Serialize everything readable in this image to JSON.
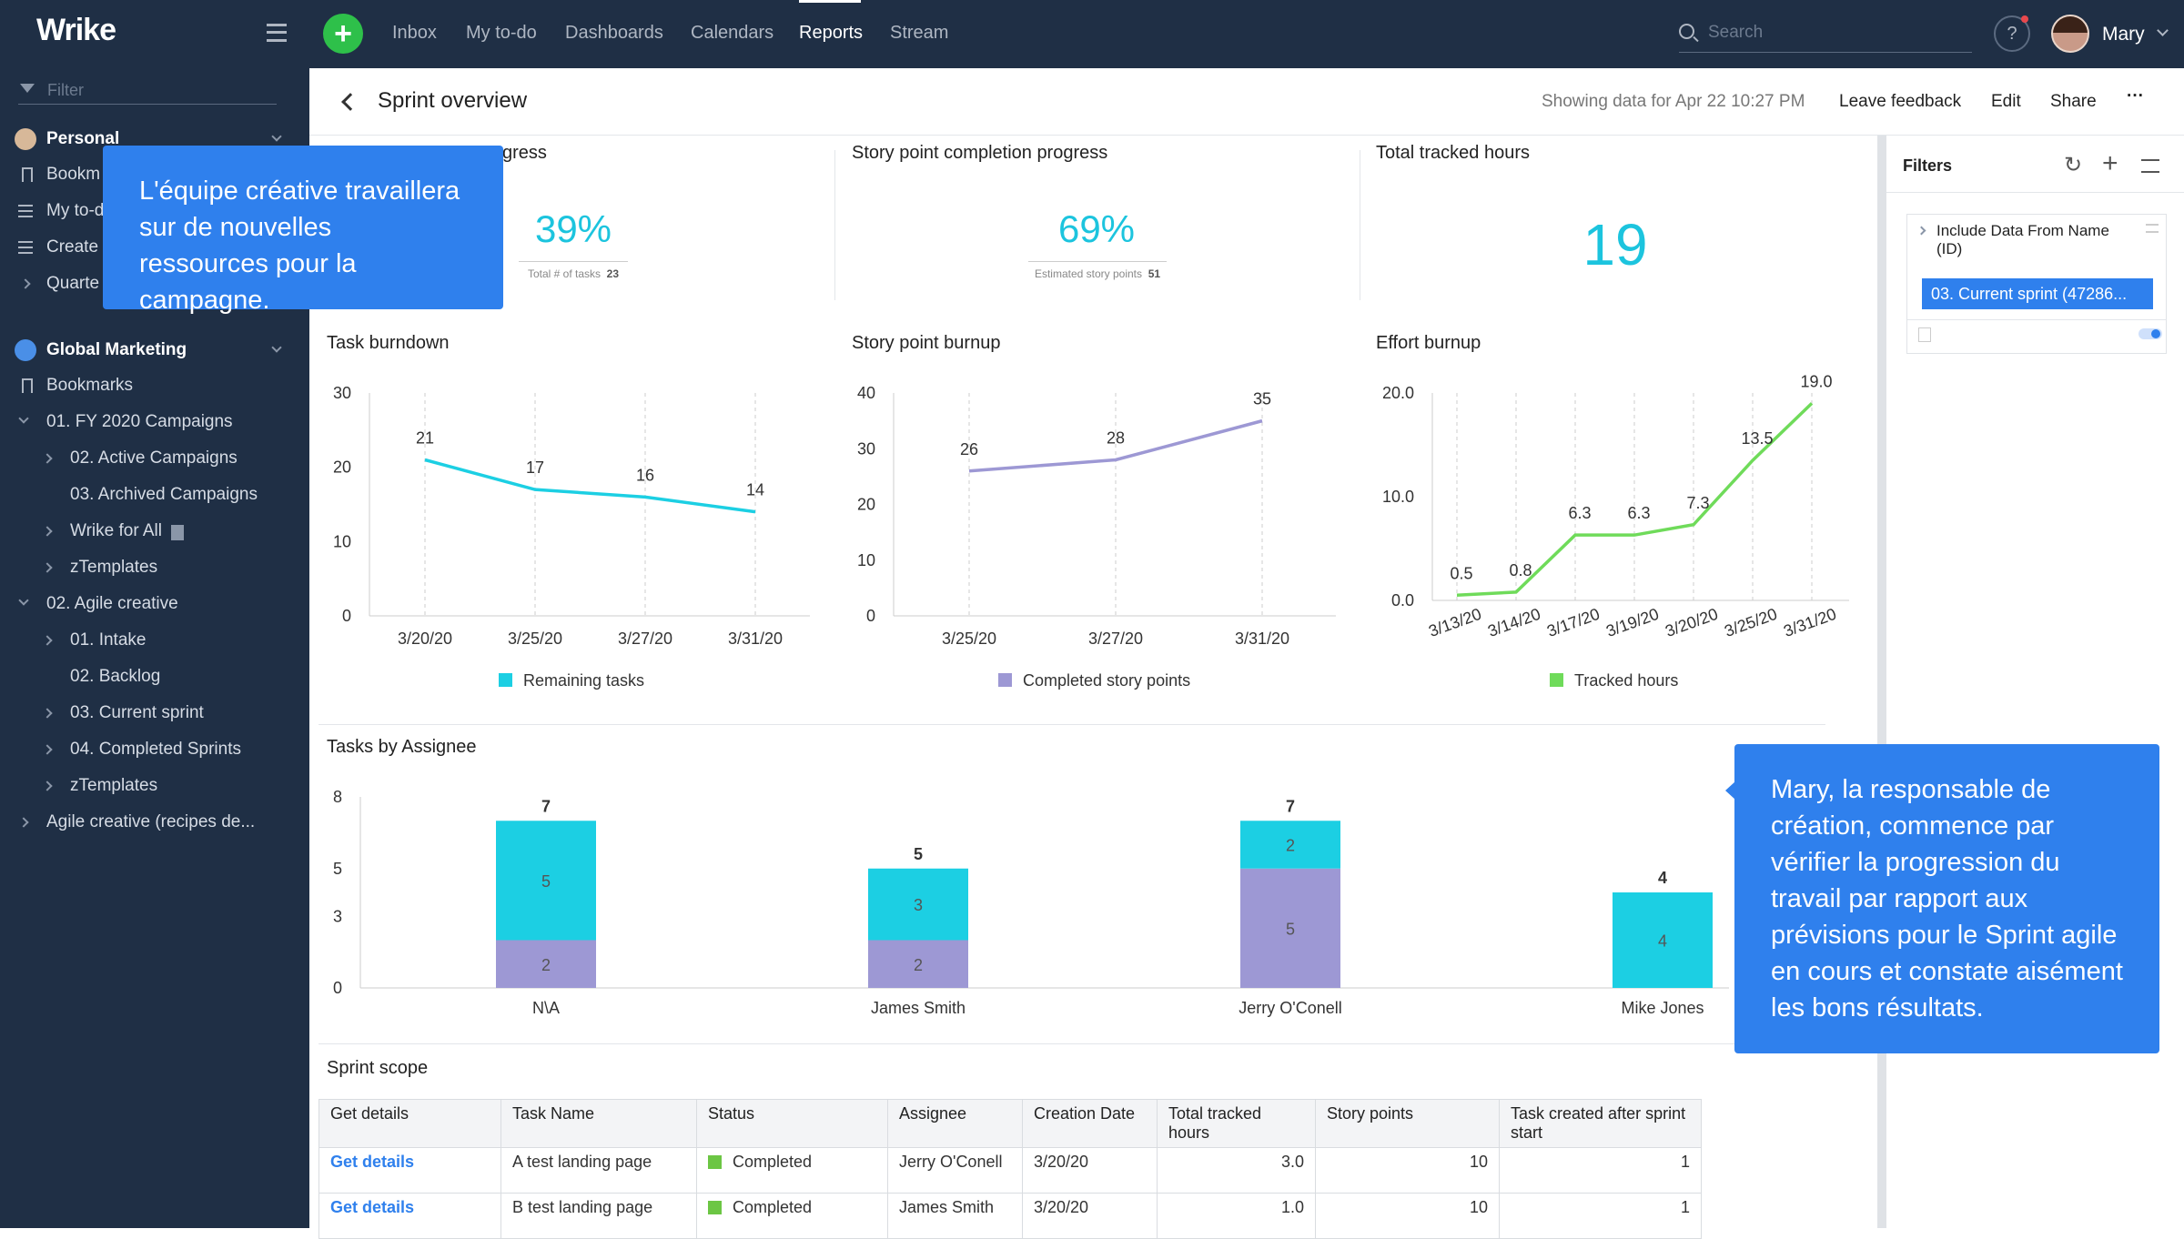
{
  "app": {
    "logo": "Wrike",
    "user_name": "Mary"
  },
  "nav": {
    "items": [
      "Inbox",
      "My to-do",
      "Dashboards",
      "Calendars",
      "Reports",
      "Stream"
    ],
    "active": "Reports",
    "search_placeholder": "Search",
    "help": "?"
  },
  "sidebar": {
    "filter_placeholder": "Filter",
    "items": [
      "Personal",
      "Bookm",
      "My to-d",
      "Create",
      "Quarte",
      "Global Marketing",
      "Bookmarks",
      "01. FY 2020 Campaigns",
      "02. Active Campaigns",
      "03. Archived Campaigns",
      "Wrike for All",
      "zTemplates",
      "02. Agile creative",
      "01. Intake",
      "02. Backlog",
      "03. Current sprint",
      "04. Completed Sprints",
      "zTemplates",
      "Agile creative (recipes de..."
    ]
  },
  "header": {
    "title": "Sprint overview",
    "showing": "Showing data for Apr 22 10:27 PM",
    "leave_feedback": "Leave feedback",
    "edit": "Edit",
    "share": "Share",
    "more": "···"
  },
  "kpi": [
    {
      "title": "gress",
      "value": "39%",
      "sub_label": "Total # of tasks",
      "sub_value": "23"
    },
    {
      "title": "Story point completion progress",
      "value": "69%",
      "sub_label": "Estimated story points",
      "sub_value": "51"
    },
    {
      "title": "Total tracked hours",
      "value": "19"
    }
  ],
  "colors": {
    "teal": "#1ccfe3",
    "purple": "#9d98d4",
    "green": "#6fdb5a",
    "accent": "#2f80ed"
  },
  "chart_data": [
    {
      "type": "line",
      "title": "Task burndown",
      "x": [
        "3/20/20",
        "3/25/20",
        "3/27/20",
        "3/31/20"
      ],
      "series": [
        {
          "name": "Remaining tasks",
          "values": [
            21,
            17,
            16,
            14
          ]
        }
      ],
      "ylim": [
        0,
        30
      ],
      "yticks": [
        0,
        10,
        20,
        30
      ],
      "grid": true,
      "legend": "bottom"
    },
    {
      "type": "line",
      "title": "Story point burnup",
      "x": [
        "3/25/20",
        "3/27/20",
        "3/31/20"
      ],
      "series": [
        {
          "name": "Completed story points",
          "values": [
            26,
            28,
            35
          ]
        }
      ],
      "ylim": [
        0,
        40
      ],
      "yticks": [
        0,
        10,
        20,
        30,
        40
      ],
      "grid": true,
      "legend": "bottom"
    },
    {
      "type": "line",
      "title": "Effort burnup",
      "x": [
        "3/13/20",
        "3/14/20",
        "3/17/20",
        "3/19/20",
        "3/20/20",
        "3/25/20",
        "3/31/20"
      ],
      "series": [
        {
          "name": "Tracked hours",
          "values": [
            0.5,
            0.8,
            6.3,
            6.3,
            7.3,
            13.5,
            19.0
          ]
        }
      ],
      "value_labels": [
        "0.5",
        "0.8",
        "6.3",
        "6.3",
        "7.3",
        "13.5",
        "19.0"
      ],
      "ylim": [
        0,
        20
      ],
      "yticks": [
        "0.0",
        "10.0",
        "20.0"
      ],
      "grid": true,
      "legend": "bottom"
    },
    {
      "type": "bar",
      "title": "Tasks by Assignee",
      "stacked": true,
      "categories": [
        "N\\A",
        "James Smith",
        "Jerry O'Conell",
        "Mike Jones"
      ],
      "series": [
        {
          "values": [
            2,
            2,
            5,
            0
          ]
        },
        {
          "values": [
            5,
            3,
            2,
            4
          ]
        }
      ],
      "totals": [
        7,
        5,
        7,
        4
      ],
      "ylim": [
        0,
        8
      ],
      "yticks": [
        0,
        3,
        5,
        8
      ]
    }
  ],
  "filters": {
    "title": "Filters",
    "field": "Include Data From Name (ID)",
    "value": "03. Current sprint (47286..."
  },
  "table": {
    "title": "Sprint scope",
    "headers": [
      "Get details",
      "Task Name",
      "Status",
      "Assignee",
      "Creation Date",
      "Total tracked hours",
      "Story points",
      "Task created after sprint start"
    ],
    "rows": [
      [
        "Get details",
        "A test landing page",
        "Completed",
        "Jerry O'Conell",
        "3/20/20",
        "3.0",
        "10",
        "1"
      ],
      [
        "Get details",
        "B test landing page",
        "Completed",
        "James Smith",
        "3/20/20",
        "1.0",
        "10",
        "1"
      ]
    ]
  },
  "tooltips": {
    "top": "L'équipe créative travaillera sur de nouvelles ressources pour la campagne.",
    "right": "Mary, la responsable de création, commence par vérifier la progression du travail par rapport aux prévisions pour le Sprint agile en cours et constate aisément les bons résultats."
  }
}
